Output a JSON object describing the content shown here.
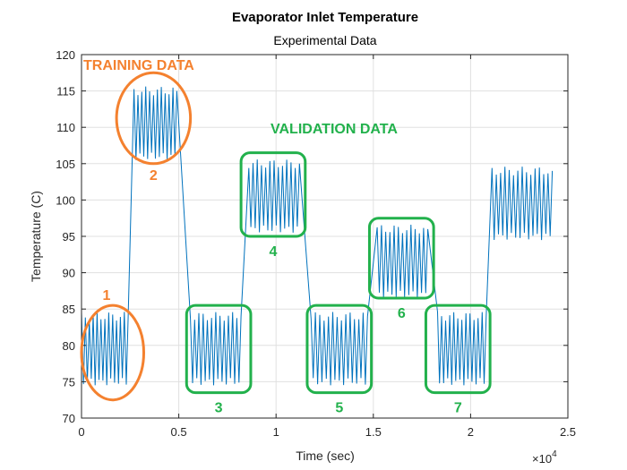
{
  "chart_data": {
    "type": "line",
    "title": "Evaporator Inlet Temperature",
    "subtitle": "Experimental Data",
    "xlabel": "Time (sec)",
    "ylabel": "Temperature (C)",
    "x_exponent_label": "×10",
    "x_exponent_power": "4",
    "xlim": [
      0,
      2.5
    ],
    "ylim": [
      70,
      120
    ],
    "xticks": [
      0,
      0.5,
      1,
      1.5,
      2,
      2.5
    ],
    "xtick_labels": [
      "0",
      "0.5",
      "1",
      "1.5",
      "2",
      "2.5"
    ],
    "yticks": [
      70,
      75,
      80,
      85,
      90,
      95,
      100,
      105,
      110,
      115,
      120
    ],
    "ytick_labels": [
      "70",
      "75",
      "80",
      "85",
      "90",
      "95",
      "100",
      "105",
      "110",
      "115",
      "120"
    ],
    "grid": true,
    "series_color": "#0072bd",
    "segments": [
      {
        "x_start": 0.0,
        "x_end": 0.24,
        "low": 75,
        "high": 84,
        "cycles": 12
      },
      {
        "x_start": 0.27,
        "x_end": 0.49,
        "low": 106,
        "high": 115,
        "cycles": 11
      },
      {
        "x_start": 0.56,
        "x_end": 0.82,
        "low": 75,
        "high": 84,
        "cycles": 12
      },
      {
        "x_start": 0.86,
        "x_end": 1.12,
        "low": 96,
        "high": 105,
        "cycles": 12
      },
      {
        "x_start": 1.18,
        "x_end": 1.47,
        "low": 75,
        "high": 84,
        "cycles": 13
      },
      {
        "x_start": 1.52,
        "x_end": 1.78,
        "low": 87,
        "high": 96,
        "cycles": 12
      },
      {
        "x_start": 1.83,
        "x_end": 2.08,
        "low": 75,
        "high": 84,
        "cycles": 12
      },
      {
        "x_start": 2.11,
        "x_end": 2.42,
        "low": 95,
        "high": 104,
        "cycles": 14
      }
    ],
    "annotations": {
      "training_label": "TRAINING DATA",
      "validation_label": "VALIDATION DATA",
      "training_color": "#f4812f",
      "validation_color": "#22b14c",
      "training_regions": [
        {
          "number": "1",
          "x": [
            0.0,
            0.32
          ],
          "y": [
            72.5,
            85.5
          ]
        },
        {
          "number": "2",
          "x": [
            0.18,
            0.56
          ],
          "y": [
            105,
            117.5
          ]
        }
      ],
      "validation_regions": [
        {
          "number": "3",
          "x": [
            0.54,
            0.87
          ],
          "y": [
            73.5,
            85.5
          ]
        },
        {
          "number": "4",
          "x": [
            0.82,
            1.15
          ],
          "y": [
            95,
            106.5
          ]
        },
        {
          "number": "5",
          "x": [
            1.16,
            1.49
          ],
          "y": [
            73.5,
            85.5
          ]
        },
        {
          "number": "6",
          "x": [
            1.48,
            1.81
          ],
          "y": [
            86.5,
            97.5
          ]
        },
        {
          "number": "7",
          "x": [
            1.77,
            2.1
          ],
          "y": [
            73.5,
            85.5
          ]
        }
      ]
    }
  }
}
